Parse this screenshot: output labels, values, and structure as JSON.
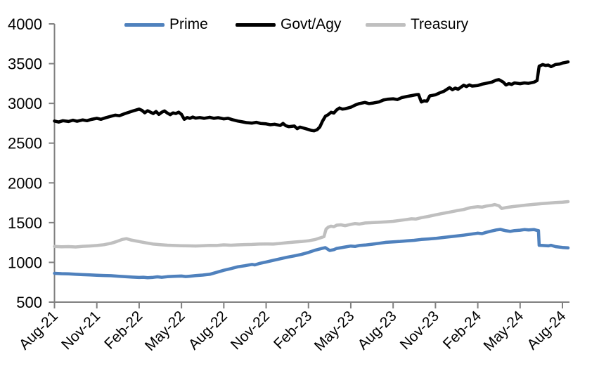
{
  "chart_data": {
    "type": "line",
    "title": "",
    "xlabel": "",
    "ylabel": "",
    "grid": false,
    "legend_position": "top",
    "axis_color": "#808080",
    "text_color": "#000000",
    "x_unit": "months_since_Aug_2021",
    "x_axis": {
      "tick_labels": [
        "Aug-21",
        "Nov-21",
        "Feb-22",
        "May-22",
        "Aug-22",
        "Nov-22",
        "Feb-23",
        "May-23",
        "Aug-23",
        "Nov-23",
        "Feb-24",
        "May-24",
        "Aug-24"
      ],
      "tick_interval_months": 3,
      "range_months": [
        0,
        36.4
      ]
    },
    "y_axis": {
      "min": 500,
      "max": 4000,
      "step": 500,
      "tick_labels": [
        "4000",
        "3500",
        "3000",
        "2500",
        "2000",
        "1500",
        "1000",
        "500"
      ]
    },
    "series": [
      {
        "name": "Prime",
        "color": "#4F81BD",
        "points": [
          [
            0,
            862
          ],
          [
            0.5,
            858
          ],
          [
            1,
            856
          ],
          [
            1.5,
            850
          ],
          [
            2,
            846
          ],
          [
            2.5,
            842
          ],
          [
            3,
            838
          ],
          [
            3.5,
            835
          ],
          [
            4,
            832
          ],
          [
            4.5,
            826
          ],
          [
            5,
            820
          ],
          [
            5.5,
            815
          ],
          [
            6,
            810
          ],
          [
            6.3,
            813
          ],
          [
            6.6,
            808
          ],
          [
            7,
            812
          ],
          [
            7.3,
            818
          ],
          [
            7.6,
            812
          ],
          [
            8,
            820
          ],
          [
            8.5,
            824
          ],
          [
            9,
            828
          ],
          [
            9.3,
            822
          ],
          [
            9.6,
            826
          ],
          [
            10,
            833
          ],
          [
            10.5,
            840
          ],
          [
            11,
            850
          ],
          [
            11.5,
            875
          ],
          [
            12,
            900
          ],
          [
            12.5,
            922
          ],
          [
            13,
            945
          ],
          [
            13.5,
            958
          ],
          [
            14,
            975
          ],
          [
            14.2,
            968
          ],
          [
            14.5,
            985
          ],
          [
            15,
            1005
          ],
          [
            15.5,
            1025
          ],
          [
            16,
            1045
          ],
          [
            16.5,
            1065
          ],
          [
            17,
            1082
          ],
          [
            17.5,
            1100
          ],
          [
            18,
            1125
          ],
          [
            18.5,
            1155
          ],
          [
            19,
            1178
          ],
          [
            19.2,
            1185
          ],
          [
            19.5,
            1150
          ],
          [
            19.8,
            1160
          ],
          [
            20,
            1175
          ],
          [
            20.5,
            1190
          ],
          [
            21,
            1205
          ],
          [
            21.3,
            1200
          ],
          [
            21.6,
            1212
          ],
          [
            22,
            1218
          ],
          [
            22.5,
            1228
          ],
          [
            23,
            1240
          ],
          [
            23.5,
            1252
          ],
          [
            24,
            1258
          ],
          [
            24.5,
            1264
          ],
          [
            25,
            1272
          ],
          [
            25.5,
            1278
          ],
          [
            26,
            1288
          ],
          [
            26.5,
            1295
          ],
          [
            27,
            1302
          ],
          [
            27.5,
            1312
          ],
          [
            28,
            1322
          ],
          [
            28.5,
            1332
          ],
          [
            29,
            1342
          ],
          [
            29.5,
            1355
          ],
          [
            30,
            1368
          ],
          [
            30.3,
            1362
          ],
          [
            30.6,
            1378
          ],
          [
            31,
            1395
          ],
          [
            31.3,
            1408
          ],
          [
            31.6,
            1415
          ],
          [
            32,
            1398
          ],
          [
            32.3,
            1390
          ],
          [
            32.6,
            1400
          ],
          [
            33,
            1405
          ],
          [
            33.3,
            1412
          ],
          [
            33.6,
            1408
          ],
          [
            34,
            1412
          ],
          [
            34.2,
            1402
          ],
          [
            34.3,
            1400
          ],
          [
            34.35,
            1215
          ],
          [
            34.6,
            1212
          ],
          [
            35,
            1208
          ],
          [
            35.2,
            1215
          ],
          [
            35.5,
            1198
          ],
          [
            36,
            1188
          ],
          [
            36.4,
            1182
          ]
        ]
      },
      {
        "name": "Govt/Agy",
        "color": "#000000",
        "points": [
          [
            0,
            2778
          ],
          [
            0.3,
            2765
          ],
          [
            0.6,
            2782
          ],
          [
            1,
            2772
          ],
          [
            1.3,
            2788
          ],
          [
            1.6,
            2775
          ],
          [
            2,
            2792
          ],
          [
            2.3,
            2782
          ],
          [
            2.6,
            2798
          ],
          [
            3,
            2812
          ],
          [
            3.3,
            2800
          ],
          [
            3.6,
            2818
          ],
          [
            4,
            2838
          ],
          [
            4.3,
            2852
          ],
          [
            4.6,
            2845
          ],
          [
            5,
            2872
          ],
          [
            5.3,
            2890
          ],
          [
            5.6,
            2908
          ],
          [
            6,
            2928
          ],
          [
            6.2,
            2912
          ],
          [
            6.4,
            2882
          ],
          [
            6.6,
            2908
          ],
          [
            6.8,
            2890
          ],
          [
            7,
            2872
          ],
          [
            7.2,
            2898
          ],
          [
            7.4,
            2862
          ],
          [
            7.6,
            2888
          ],
          [
            7.8,
            2905
          ],
          [
            8,
            2878
          ],
          [
            8.2,
            2858
          ],
          [
            8.4,
            2880
          ],
          [
            8.6,
            2872
          ],
          [
            8.8,
            2890
          ],
          [
            9,
            2862
          ],
          [
            9.2,
            2800
          ],
          [
            9.4,
            2822
          ],
          [
            9.6,
            2812
          ],
          [
            9.8,
            2828
          ],
          [
            10,
            2815
          ],
          [
            10.3,
            2822
          ],
          [
            10.6,
            2812
          ],
          [
            11,
            2825
          ],
          [
            11.3,
            2812
          ],
          [
            11.6,
            2820
          ],
          [
            12,
            2805
          ],
          [
            12.3,
            2812
          ],
          [
            12.6,
            2795
          ],
          [
            13,
            2778
          ],
          [
            13.3,
            2768
          ],
          [
            13.6,
            2758
          ],
          [
            14,
            2752
          ],
          [
            14.3,
            2762
          ],
          [
            14.6,
            2748
          ],
          [
            15,
            2742
          ],
          [
            15.3,
            2732
          ],
          [
            15.6,
            2738
          ],
          [
            16,
            2722
          ],
          [
            16.2,
            2748
          ],
          [
            16.4,
            2718
          ],
          [
            16.6,
            2708
          ],
          [
            17,
            2715
          ],
          [
            17.2,
            2682
          ],
          [
            17.4,
            2702
          ],
          [
            17.6,
            2692
          ],
          [
            18,
            2672
          ],
          [
            18.2,
            2660
          ],
          [
            18.4,
            2655
          ],
          [
            18.6,
            2668
          ],
          [
            18.8,
            2702
          ],
          [
            19,
            2778
          ],
          [
            19.2,
            2838
          ],
          [
            19.4,
            2858
          ],
          [
            19.6,
            2888
          ],
          [
            19.8,
            2878
          ],
          [
            20,
            2918
          ],
          [
            20.2,
            2942
          ],
          [
            20.4,
            2928
          ],
          [
            20.6,
            2932
          ],
          [
            21,
            2952
          ],
          [
            21.3,
            2978
          ],
          [
            21.6,
            2998
          ],
          [
            22,
            3012
          ],
          [
            22.3,
            2998
          ],
          [
            22.6,
            3005
          ],
          [
            23,
            3018
          ],
          [
            23.3,
            3042
          ],
          [
            23.6,
            3052
          ],
          [
            24,
            3058
          ],
          [
            24.3,
            3048
          ],
          [
            24.6,
            3072
          ],
          [
            25,
            3088
          ],
          [
            25.3,
            3098
          ],
          [
            25.6,
            3108
          ],
          [
            25.8,
            3112
          ],
          [
            26,
            3018
          ],
          [
            26.2,
            3032
          ],
          [
            26.4,
            3028
          ],
          [
            26.6,
            3095
          ],
          [
            27,
            3108
          ],
          [
            27.3,
            3132
          ],
          [
            27.6,
            3152
          ],
          [
            28,
            3198
          ],
          [
            28.2,
            3172
          ],
          [
            28.4,
            3192
          ],
          [
            28.6,
            3178
          ],
          [
            29,
            3228
          ],
          [
            29.2,
            3212
          ],
          [
            29.4,
            3232
          ],
          [
            29.6,
            3218
          ],
          [
            30,
            3225
          ],
          [
            30.3,
            3242
          ],
          [
            30.6,
            3252
          ],
          [
            31,
            3268
          ],
          [
            31.3,
            3292
          ],
          [
            31.5,
            3298
          ],
          [
            31.8,
            3268
          ],
          [
            32,
            3232
          ],
          [
            32.2,
            3248
          ],
          [
            32.4,
            3238
          ],
          [
            32.6,
            3258
          ],
          [
            33,
            3248
          ],
          [
            33.3,
            3258
          ],
          [
            33.6,
            3252
          ],
          [
            34,
            3268
          ],
          [
            34.2,
            3288
          ],
          [
            34.35,
            3468
          ],
          [
            34.6,
            3488
          ],
          [
            34.8,
            3478
          ],
          [
            35,
            3482
          ],
          [
            35.2,
            3462
          ],
          [
            35.5,
            3488
          ],
          [
            35.8,
            3495
          ],
          [
            36,
            3508
          ],
          [
            36.2,
            3515
          ],
          [
            36.4,
            3522
          ]
        ]
      },
      {
        "name": "Treasury",
        "color": "#BFBFBF",
        "points": [
          [
            0,
            1200
          ],
          [
            0.5,
            1196
          ],
          [
            1,
            1198
          ],
          [
            1.5,
            1194
          ],
          [
            2,
            1202
          ],
          [
            2.5,
            1206
          ],
          [
            3,
            1212
          ],
          [
            3.5,
            1222
          ],
          [
            4,
            1240
          ],
          [
            4.4,
            1262
          ],
          [
            4.8,
            1288
          ],
          [
            5.1,
            1298
          ],
          [
            5.4,
            1282
          ],
          [
            6,
            1262
          ],
          [
            6.5,
            1245
          ],
          [
            7,
            1230
          ],
          [
            7.5,
            1222
          ],
          [
            8,
            1216
          ],
          [
            8.5,
            1212
          ],
          [
            9,
            1210
          ],
          [
            9.5,
            1208
          ],
          [
            10,
            1206
          ],
          [
            10.5,
            1210
          ],
          [
            11,
            1214
          ],
          [
            11.5,
            1212
          ],
          [
            12,
            1220
          ],
          [
            12.5,
            1216
          ],
          [
            13,
            1220
          ],
          [
            13.5,
            1224
          ],
          [
            14,
            1226
          ],
          [
            14.5,
            1230
          ],
          [
            15,
            1232
          ],
          [
            15.5,
            1230
          ],
          [
            16,
            1238
          ],
          [
            16.5,
            1248
          ],
          [
            17,
            1256
          ],
          [
            17.5,
            1262
          ],
          [
            18,
            1272
          ],
          [
            18.5,
            1288
          ],
          [
            18.9,
            1312
          ],
          [
            19.1,
            1325
          ],
          [
            19.25,
            1418
          ],
          [
            19.4,
            1442
          ],
          [
            19.6,
            1455
          ],
          [
            19.8,
            1448
          ],
          [
            20,
            1468
          ],
          [
            20.3,
            1472
          ],
          [
            20.6,
            1462
          ],
          [
            21,
            1478
          ],
          [
            21.3,
            1488
          ],
          [
            21.6,
            1482
          ],
          [
            22,
            1495
          ],
          [
            22.5,
            1500
          ],
          [
            23,
            1504
          ],
          [
            23.5,
            1510
          ],
          [
            24,
            1516
          ],
          [
            24.5,
            1528
          ],
          [
            25,
            1540
          ],
          [
            25.3,
            1548
          ],
          [
            25.6,
            1545
          ],
          [
            26,
            1562
          ],
          [
            26.5,
            1578
          ],
          [
            27,
            1598
          ],
          [
            27.5,
            1615
          ],
          [
            28,
            1632
          ],
          [
            28.5,
            1650
          ],
          [
            29,
            1665
          ],
          [
            29.5,
            1690
          ],
          [
            30,
            1700
          ],
          [
            30.3,
            1695
          ],
          [
            30.6,
            1708
          ],
          [
            31,
            1718
          ],
          [
            31.2,
            1728
          ],
          [
            31.5,
            1712
          ],
          [
            31.7,
            1678
          ],
          [
            32,
            1690
          ],
          [
            32.5,
            1702
          ],
          [
            33,
            1712
          ],
          [
            33.5,
            1722
          ],
          [
            34,
            1730
          ],
          [
            34.5,
            1738
          ],
          [
            35,
            1745
          ],
          [
            35.5,
            1752
          ],
          [
            36,
            1758
          ],
          [
            36.4,
            1764
          ]
        ]
      }
    ]
  }
}
